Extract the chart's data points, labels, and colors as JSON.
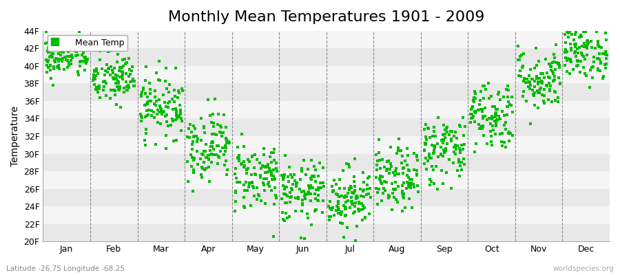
{
  "title": "Monthly Mean Temperatures 1901 - 2009",
  "ylabel": "Temperature",
  "xlabel_months": [
    "Jan",
    "Feb",
    "Mar",
    "Apr",
    "May",
    "Jun",
    "Jul",
    "Aug",
    "Sep",
    "Oct",
    "Nov",
    "Dec"
  ],
  "ylim": [
    20,
    44
  ],
  "yticks": [
    20,
    22,
    24,
    26,
    28,
    30,
    32,
    34,
    36,
    38,
    40,
    42,
    44
  ],
  "ytick_labels": [
    "20F",
    "22F",
    "24F",
    "26F",
    "28F",
    "30F",
    "32F",
    "34F",
    "36F",
    "38F",
    "40F",
    "42F",
    "44F"
  ],
  "dot_color": "#00BB00",
  "bg_band_colors": [
    "#E8E8E8",
    "#F5F5F5"
  ],
  "legend_label": "Mean Temp",
  "subtitle": "Latitude -26.75 Longitude -68.25",
  "watermark": "worldspecies.org",
  "title_fontsize": 16,
  "axis_fontsize": 9,
  "marker": "s",
  "marker_size": 3,
  "monthly_mean_F": [
    41.0,
    38.5,
    35.5,
    31.0,
    27.5,
    25.5,
    25.0,
    27.0,
    30.5,
    34.5,
    38.5,
    41.5
  ],
  "monthly_std_F": [
    1.2,
    1.5,
    1.8,
    2.0,
    2.0,
    1.8,
    1.8,
    1.8,
    2.0,
    2.0,
    1.8,
    1.5
  ],
  "n_years": 109
}
